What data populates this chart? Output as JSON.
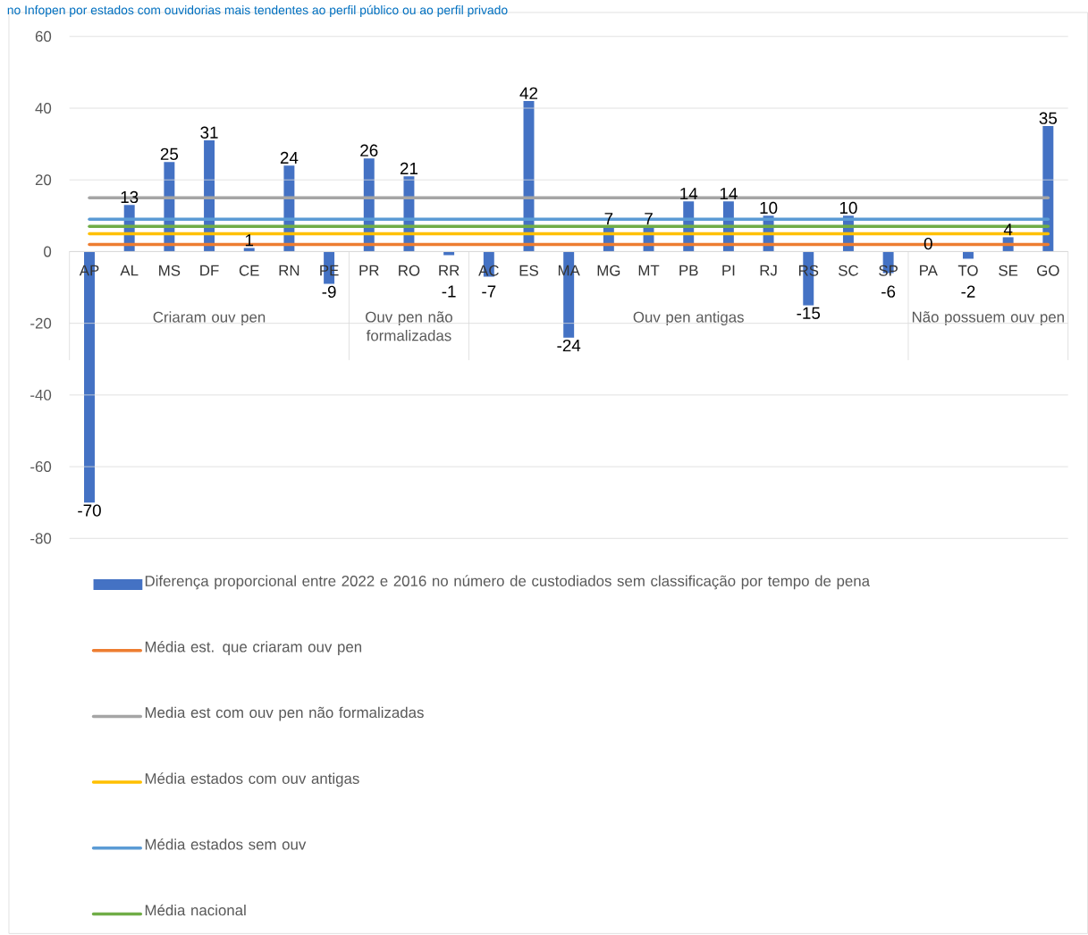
{
  "chart_data": {
    "type": "bar",
    "title": "no Infopen por estados com ouvidorias mais tendentes ao perfil público ou ao perfil privado",
    "categories": [
      "AP",
      "AL",
      "MS",
      "DF",
      "CE",
      "RN",
      "PE",
      "PR",
      "RO",
      "RR",
      "AC",
      "ES",
      "MA",
      "MG",
      "MT",
      "PB",
      "PI",
      "RJ",
      "RS",
      "SC",
      "SP",
      "PA",
      "TO",
      "SE",
      "GO"
    ],
    "series": [
      {
        "name": "Diferença proporcional entre 2022 e 2016 no número de custodiados sem classificação por tempo de pena",
        "color": "#4472c4",
        "values": [
          -70,
          13,
          25,
          31,
          1,
          24,
          -9,
          26,
          21,
          -1,
          -7,
          42,
          -24,
          7,
          7,
          14,
          14,
          10,
          -15,
          10,
          -6,
          0,
          -2,
          4,
          35
        ],
        "value_labels": [
          "-70",
          "13",
          "25",
          "31",
          "1",
          "24",
          "-9",
          "26",
          "21",
          "-1",
          "-7",
          "42",
          "-24",
          "7",
          "7",
          "14",
          "14",
          "10",
          "-15",
          "10",
          "-6",
          "0",
          "-2",
          "4",
          "35"
        ]
      },
      {
        "name": "Média est. que criaram ouv pen",
        "type": "line",
        "color": "#ed7d31",
        "values": [
          2,
          2,
          2,
          2,
          2,
          2,
          2,
          2,
          2,
          2,
          2,
          2,
          2,
          2,
          2,
          2,
          2,
          2,
          2,
          2,
          2,
          2,
          2,
          2,
          2
        ]
      },
      {
        "name": "Media est com ouv pen não formalizadas",
        "type": "line",
        "color": "#a5a5a5",
        "values": [
          15,
          15,
          15,
          15,
          15,
          15,
          15,
          15,
          15,
          15,
          15,
          15,
          15,
          15,
          15,
          15,
          15,
          15,
          15,
          15,
          15,
          15,
          15,
          15,
          15
        ]
      },
      {
        "name": "Média estados com ouv antigas",
        "type": "line",
        "color": "#ffc000",
        "values": [
          5,
          5,
          5,
          5,
          5,
          5,
          5,
          5,
          5,
          5,
          5,
          5,
          5,
          5,
          5,
          5,
          5,
          5,
          5,
          5,
          5,
          5,
          5,
          5,
          5
        ]
      },
      {
        "name": "Média estados sem ouv",
        "type": "line",
        "color": "#5b9bd5",
        "values": [
          9,
          9,
          9,
          9,
          9,
          9,
          9,
          9,
          9,
          9,
          9,
          9,
          9,
          9,
          9,
          9,
          9,
          9,
          9,
          9,
          9,
          9,
          9,
          9,
          9
        ]
      },
      {
        "name": "Média nacional",
        "type": "line",
        "color": "#70ad47",
        "values": [
          7,
          7,
          7,
          7,
          7,
          7,
          7,
          7,
          7,
          7,
          7,
          7,
          7,
          7,
          7,
          7,
          7,
          7,
          7,
          7,
          7,
          7,
          7,
          7,
          7
        ]
      }
    ],
    "ylim": [
      -80,
      60
    ],
    "yticks": [
      -80,
      -60,
      -40,
      -20,
      0,
      20,
      40,
      60
    ],
    "grid": "y",
    "legend": "bottom",
    "annotations": [
      "Criaram ouv pen",
      "Ouv pen não formalizadas",
      "Ouv pen antigas",
      "Não possuem ouv pen"
    ]
  }
}
